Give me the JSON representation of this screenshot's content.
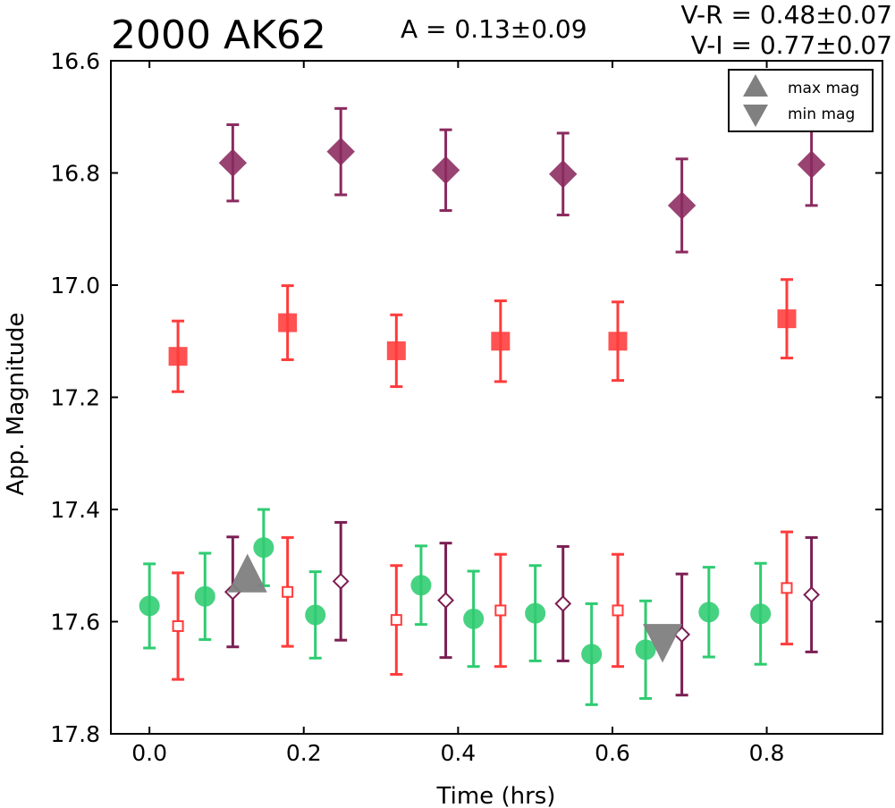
{
  "header": {
    "title": "2000 AK62",
    "amplitude": "A  = 0.13±0.09",
    "v_r": "V-R = 0.48±0.07",
    "v_i": "V-I  = 0.77±0.07"
  },
  "chart_data": {
    "type": "scatter",
    "title": "2000 AK62",
    "xlabel": "Time (hrs)",
    "ylabel": "App. Magnitude",
    "xlim": [
      -0.05,
      0.95
    ],
    "ylim": [
      17.8,
      16.6
    ],
    "y_inverted": true,
    "grid": false,
    "xticks": [
      "0.0",
      "0.2",
      "0.4",
      "0.6",
      "0.8"
    ],
    "yticks": [
      "16.6",
      "16.8",
      "17.0",
      "17.2",
      "17.4",
      "17.6",
      "17.8"
    ],
    "legend": {
      "placement": "top-right",
      "entries": [
        {
          "label": "max mag",
          "marker": "triangle-up",
          "color": "#808080"
        },
        {
          "label": "min mag",
          "marker": "triangle-down",
          "color": "#808080"
        }
      ]
    },
    "series": [
      {
        "marker": "diamond",
        "filled": true,
        "color": "#8b2a5f",
        "points": [
          {
            "x": 0.108,
            "y": 16.782,
            "err": 0.068
          },
          {
            "x": 0.248,
            "y": 16.762,
            "err": 0.077
          },
          {
            "x": 0.384,
            "y": 16.795,
            "err": 0.072
          },
          {
            "x": 0.536,
            "y": 16.802,
            "err": 0.073
          },
          {
            "x": 0.69,
            "y": 16.858,
            "err": 0.083
          },
          {
            "x": 0.858,
            "y": 16.785,
            "err": 0.073
          }
        ]
      },
      {
        "marker": "square",
        "filled": true,
        "color": "#ff3b3b",
        "points": [
          {
            "x": 0.037,
            "y": 17.127,
            "err": 0.063
          },
          {
            "x": 0.179,
            "y": 17.067,
            "err": 0.066
          },
          {
            "x": 0.32,
            "y": 17.117,
            "err": 0.064
          },
          {
            "x": 0.455,
            "y": 17.1,
            "err": 0.072
          },
          {
            "x": 0.607,
            "y": 17.1,
            "err": 0.07
          },
          {
            "x": 0.826,
            "y": 17.06,
            "err": 0.07
          }
        ]
      },
      {
        "marker": "circle",
        "filled": true,
        "color": "#2ecc71",
        "points": [
          {
            "x": 0.0,
            "y": 17.572,
            "err": 0.075
          },
          {
            "x": 0.072,
            "y": 17.555,
            "err": 0.077
          },
          {
            "x": 0.148,
            "y": 17.468,
            "err": 0.068
          },
          {
            "x": 0.215,
            "y": 17.588,
            "err": 0.077
          },
          {
            "x": 0.352,
            "y": 17.535,
            "err": 0.07
          },
          {
            "x": 0.42,
            "y": 17.595,
            "err": 0.085
          },
          {
            "x": 0.5,
            "y": 17.585,
            "err": 0.085
          },
          {
            "x": 0.573,
            "y": 17.658,
            "err": 0.09
          },
          {
            "x": 0.643,
            "y": 17.65,
            "err": 0.087
          },
          {
            "x": 0.725,
            "y": 17.583,
            "err": 0.08
          },
          {
            "x": 0.792,
            "y": 17.586,
            "err": 0.09
          }
        ]
      },
      {
        "marker": "square",
        "filled": false,
        "color": "#ff3b3b",
        "points": [
          {
            "x": 0.037,
            "y": 17.608,
            "err": 0.095
          },
          {
            "x": 0.179,
            "y": 17.547,
            "err": 0.097
          },
          {
            "x": 0.32,
            "y": 17.597,
            "err": 0.097
          },
          {
            "x": 0.455,
            "y": 17.58,
            "err": 0.1
          },
          {
            "x": 0.607,
            "y": 17.58,
            "err": 0.1
          },
          {
            "x": 0.826,
            "y": 17.54,
            "err": 0.1
          }
        ]
      },
      {
        "marker": "diamond",
        "filled": false,
        "color": "#7b1f52",
        "points": [
          {
            "x": 0.108,
            "y": 17.547,
            "err": 0.098
          },
          {
            "x": 0.248,
            "y": 17.528,
            "err": 0.105
          },
          {
            "x": 0.384,
            "y": 17.562,
            "err": 0.102
          },
          {
            "x": 0.536,
            "y": 17.568,
            "err": 0.102
          },
          {
            "x": 0.69,
            "y": 17.623,
            "err": 0.108
          },
          {
            "x": 0.858,
            "y": 17.552,
            "err": 0.102
          }
        ]
      }
    ],
    "extrema": [
      {
        "type": "max",
        "x": 0.127,
        "y": 17.522,
        "marker": "triangle-up",
        "color": "#808080"
      },
      {
        "type": "min",
        "x": 0.665,
        "y": 17.63,
        "marker": "triangle-down",
        "color": "#808080"
      }
    ]
  }
}
